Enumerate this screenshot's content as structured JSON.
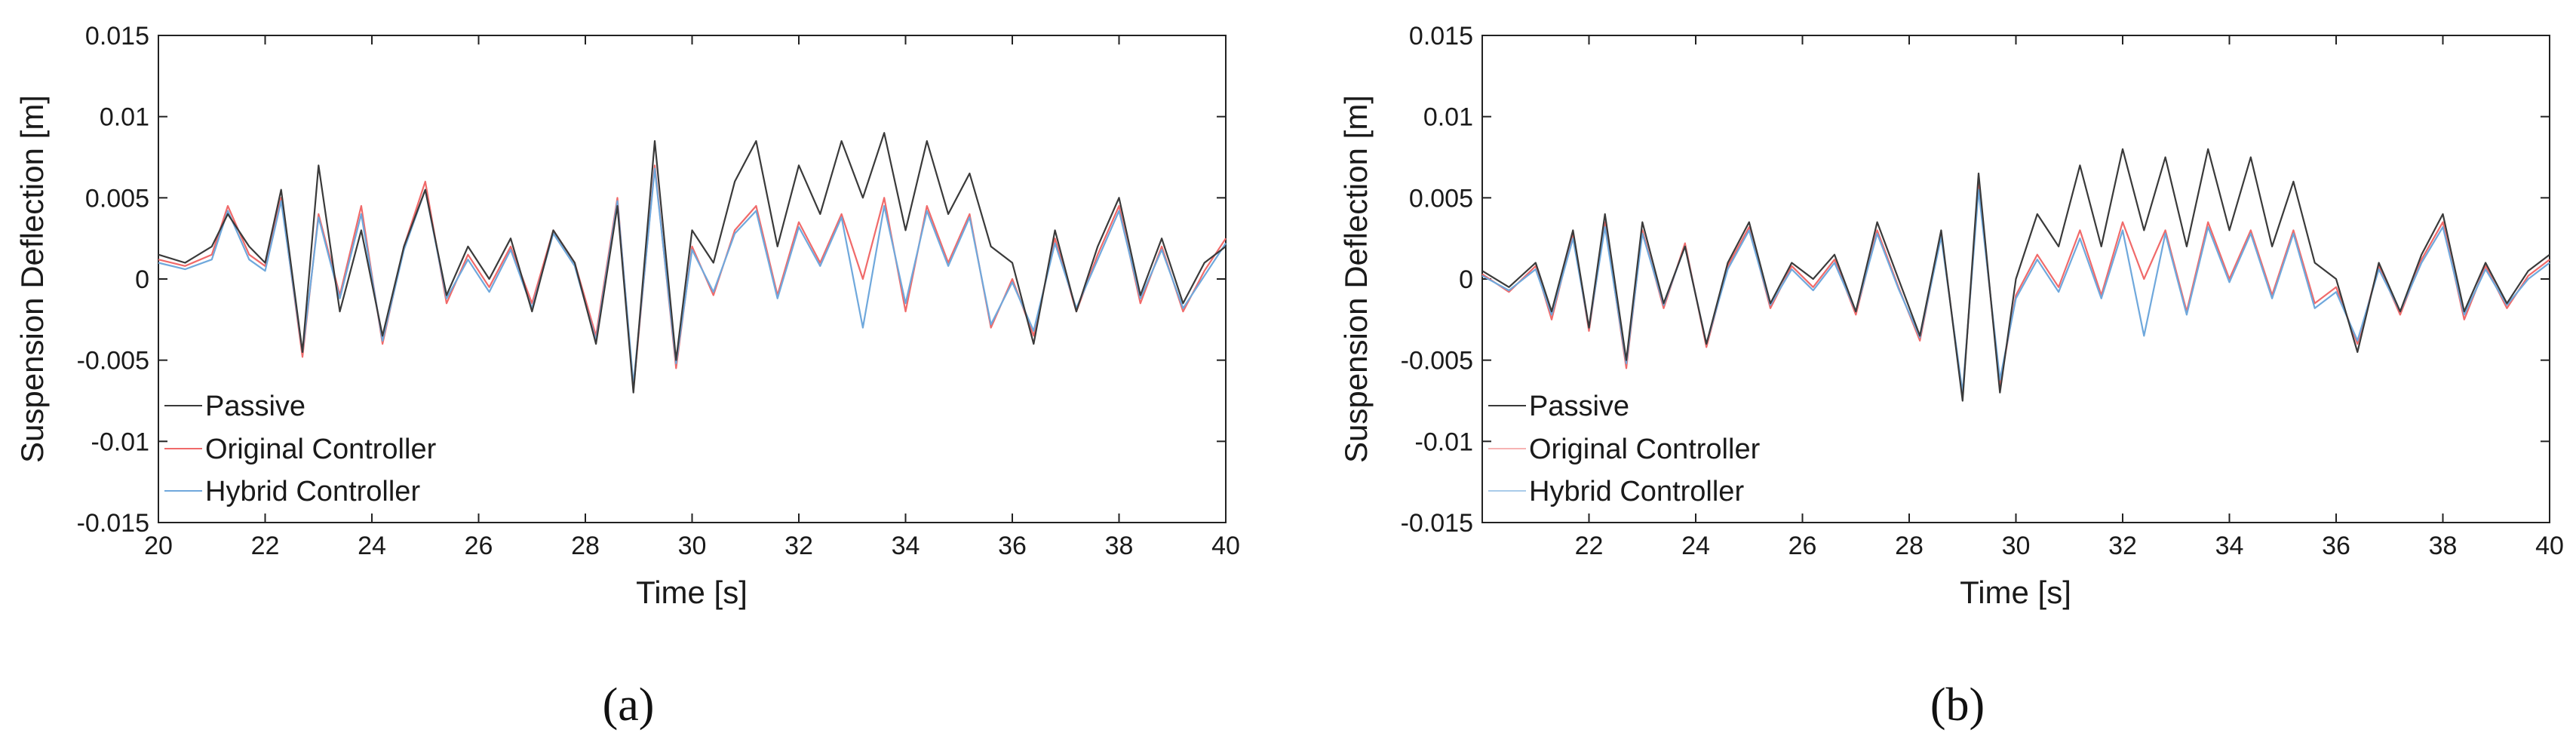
{
  "chart_data": [
    {
      "type": "line",
      "panel_label": "(a)",
      "xlabel": "Time [s]",
      "ylabel": "Suspension Deflection [m]",
      "xlim": [
        20,
        40
      ],
      "ylim": [
        -0.015,
        0.015
      ],
      "xticks": [
        "20",
        "22",
        "24",
        "26",
        "28",
        "30",
        "32",
        "34",
        "36",
        "38",
        "40"
      ],
      "yticks": [
        "-0.015",
        "-0.01",
        "-0.005",
        "0",
        "0.005",
        "0.01",
        "0.015"
      ],
      "legend_position": "bottom-left",
      "series": [
        {
          "name": "Passive",
          "color": "#3a3a3a",
          "x": [
            20.0,
            20.5,
            21.0,
            21.3,
            21.7,
            22.0,
            22.3,
            22.7,
            23.0,
            23.4,
            23.8,
            24.2,
            24.6,
            25.0,
            25.4,
            25.8,
            26.2,
            26.6,
            27.0,
            27.4,
            27.8,
            28.2,
            28.6,
            28.9,
            29.3,
            29.7,
            30.0,
            30.4,
            30.8,
            31.2,
            31.6,
            32.0,
            32.4,
            32.8,
            33.2,
            33.6,
            34.0,
            34.4,
            34.8,
            35.2,
            35.6,
            36.0,
            36.4,
            36.8,
            37.2,
            37.6,
            38.0,
            38.4,
            38.8,
            39.2,
            39.6,
            40.0
          ],
          "values": [
            0.0015,
            0.001,
            0.002,
            0.004,
            0.002,
            0.001,
            0.0055,
            -0.0045,
            0.007,
            -0.002,
            0.003,
            -0.0035,
            0.002,
            0.0055,
            -0.001,
            0.002,
            0.0,
            0.0025,
            -0.002,
            0.003,
            0.001,
            -0.004,
            0.0045,
            -0.007,
            0.0085,
            -0.005,
            0.003,
            0.001,
            0.006,
            0.0085,
            0.002,
            0.007,
            0.004,
            0.0085,
            0.005,
            0.009,
            0.003,
            0.0085,
            0.004,
            0.0065,
            0.002,
            0.001,
            -0.004,
            0.003,
            -0.002,
            0.002,
            0.005,
            -0.001,
            0.0025,
            -0.0015,
            0.001,
            0.002
          ]
        },
        {
          "name": "Original Controller",
          "color": "#f06a6a",
          "x": [
            20.0,
            20.5,
            21.0,
            21.3,
            21.7,
            22.0,
            22.3,
            22.7,
            23.0,
            23.4,
            23.8,
            24.2,
            24.6,
            25.0,
            25.4,
            25.8,
            26.2,
            26.6,
            27.0,
            27.4,
            27.8,
            28.2,
            28.6,
            28.9,
            29.3,
            29.7,
            30.0,
            30.4,
            30.8,
            31.2,
            31.6,
            32.0,
            32.4,
            32.8,
            33.2,
            33.6,
            34.0,
            34.4,
            34.8,
            35.2,
            35.6,
            36.0,
            36.4,
            36.8,
            37.2,
            37.6,
            38.0,
            38.4,
            38.8,
            39.2,
            39.6,
            40.0
          ],
          "values": [
            0.0012,
            0.0008,
            0.0015,
            0.0045,
            0.0015,
            0.0008,
            0.005,
            -0.0048,
            0.004,
            -0.001,
            0.0045,
            -0.004,
            0.002,
            0.006,
            -0.0015,
            0.0015,
            -0.0005,
            0.002,
            -0.0015,
            0.003,
            0.001,
            -0.0035,
            0.005,
            -0.0068,
            0.007,
            -0.0055,
            0.002,
            -0.001,
            0.003,
            0.0045,
            -0.001,
            0.0035,
            0.001,
            0.004,
            0.0,
            0.005,
            -0.002,
            0.0045,
            0.001,
            0.004,
            -0.003,
            0.0,
            -0.0035,
            0.0025,
            -0.002,
            0.0015,
            0.0045,
            -0.0015,
            0.002,
            -0.002,
            0.0005,
            0.0025
          ]
        },
        {
          "name": "Hybrid Controller",
          "color": "#6fa8dc",
          "x": [
            20.0,
            20.5,
            21.0,
            21.3,
            21.7,
            22.0,
            22.3,
            22.7,
            23.0,
            23.4,
            23.8,
            24.2,
            24.6,
            25.0,
            25.4,
            25.8,
            26.2,
            26.6,
            27.0,
            27.4,
            27.8,
            28.2,
            28.6,
            28.9,
            29.3,
            29.7,
            30.0,
            30.4,
            30.8,
            31.2,
            31.6,
            32.0,
            32.4,
            32.8,
            33.2,
            33.6,
            34.0,
            34.4,
            34.8,
            35.2,
            35.6,
            36.0,
            36.4,
            36.8,
            37.2,
            37.6,
            38.0,
            38.4,
            38.8,
            39.2,
            39.6,
            40.0
          ],
          "values": [
            0.001,
            0.0006,
            0.0012,
            0.0042,
            0.0012,
            0.0005,
            0.0048,
            -0.0045,
            0.0038,
            -0.0012,
            0.004,
            -0.0038,
            0.0018,
            0.0055,
            -0.0012,
            0.0012,
            -0.0008,
            0.0018,
            -0.0018,
            0.0028,
            0.0008,
            -0.0038,
            0.0048,
            -0.0065,
            0.0068,
            -0.0052,
            0.0018,
            -0.0008,
            0.0028,
            0.0042,
            -0.0012,
            0.0032,
            0.0008,
            0.0038,
            -0.003,
            0.0045,
            -0.0015,
            0.0042,
            0.0008,
            0.0038,
            -0.0028,
            -0.0002,
            -0.0032,
            0.0022,
            -0.0018,
            0.0012,
            0.0042,
            -0.0012,
            0.0018,
            -0.0018,
            0.0002,
            0.0022
          ]
        }
      ]
    },
    {
      "type": "line",
      "panel_label": "(b)",
      "xlabel": "Time [s]",
      "ylabel": "Suspension Deflection [m]",
      "xlim": [
        20,
        40
      ],
      "ylim": [
        -0.015,
        0.015
      ],
      "xticks": [
        "22",
        "24",
        "26",
        "28",
        "30",
        "32",
        "34",
        "36",
        "38",
        "40"
      ],
      "yticks": [
        "-0.015",
        "-0.01",
        "-0.005",
        "0",
        "0.005",
        "0.01",
        "0.015"
      ],
      "legend_position": "bottom-left",
      "series": [
        {
          "name": "Passive",
          "color": "#3a3a3a",
          "x": [
            20.0,
            20.5,
            21.0,
            21.3,
            21.7,
            22.0,
            22.3,
            22.7,
            23.0,
            23.4,
            23.8,
            24.2,
            24.6,
            25.0,
            25.4,
            25.8,
            26.2,
            26.6,
            27.0,
            27.4,
            27.8,
            28.2,
            28.6,
            29.0,
            29.3,
            29.7,
            30.0,
            30.4,
            30.8,
            31.2,
            31.6,
            32.0,
            32.4,
            32.8,
            33.2,
            33.6,
            34.0,
            34.4,
            34.8,
            35.2,
            35.6,
            36.0,
            36.4,
            36.8,
            37.2,
            37.6,
            38.0,
            38.4,
            38.8,
            39.2,
            39.6,
            40.0
          ],
          "values": [
            0.0005,
            -0.0005,
            0.001,
            -0.002,
            0.003,
            -0.003,
            0.004,
            -0.005,
            0.0035,
            -0.0015,
            0.002,
            -0.004,
            0.001,
            0.0035,
            -0.0015,
            0.001,
            0.0,
            0.0015,
            -0.002,
            0.0035,
            0.0,
            -0.0035,
            0.003,
            -0.0075,
            0.0065,
            -0.007,
            0.0,
            0.004,
            0.002,
            0.007,
            0.002,
            0.008,
            0.003,
            0.0075,
            0.002,
            0.008,
            0.003,
            0.0075,
            0.002,
            0.006,
            0.001,
            0.0,
            -0.0045,
            0.001,
            -0.002,
            0.0015,
            0.004,
            -0.002,
            0.001,
            -0.0015,
            0.0005,
            0.0015
          ]
        },
        {
          "name": "Original Controller",
          "color": "#f06a6a",
          "x": [
            20.0,
            20.5,
            21.0,
            21.3,
            21.7,
            22.0,
            22.3,
            22.7,
            23.0,
            23.4,
            23.8,
            24.2,
            24.6,
            25.0,
            25.4,
            25.8,
            26.2,
            26.6,
            27.0,
            27.4,
            27.8,
            28.2,
            28.6,
            29.0,
            29.3,
            29.7,
            30.0,
            30.4,
            30.8,
            31.2,
            31.6,
            32.0,
            32.4,
            32.8,
            33.2,
            33.6,
            34.0,
            34.4,
            34.8,
            35.2,
            35.6,
            36.0,
            36.4,
            36.8,
            37.2,
            37.6,
            38.0,
            38.4,
            38.8,
            39.2,
            39.6,
            40.0
          ],
          "values": [
            0.0003,
            -0.0008,
            0.0008,
            -0.0025,
            0.0028,
            -0.0032,
            0.0035,
            -0.0055,
            0.003,
            -0.0018,
            0.0022,
            -0.0042,
            0.0008,
            0.0032,
            -0.0018,
            0.0008,
            -0.0005,
            0.0012,
            -0.0022,
            0.003,
            -0.0005,
            -0.0038,
            0.0028,
            -0.0072,
            0.0058,
            -0.0065,
            -0.001,
            0.0015,
            -0.0005,
            0.003,
            -0.001,
            0.0035,
            0.0,
            0.003,
            -0.002,
            0.0035,
            0.0,
            0.003,
            -0.001,
            0.003,
            -0.0015,
            -0.0005,
            -0.004,
            0.0008,
            -0.0022,
            0.0012,
            0.0035,
            -0.0025,
            0.0008,
            -0.0018,
            0.0002,
            0.0012
          ]
        },
        {
          "name": "Hybrid Controller",
          "color": "#6fa8dc",
          "x": [
            20.0,
            20.5,
            21.0,
            21.3,
            21.7,
            22.0,
            22.3,
            22.7,
            23.0,
            23.4,
            23.8,
            24.2,
            24.6,
            25.0,
            25.4,
            25.8,
            26.2,
            26.6,
            27.0,
            27.4,
            27.8,
            28.2,
            28.6,
            29.0,
            29.3,
            29.7,
            30.0,
            30.4,
            30.8,
            31.2,
            31.6,
            32.0,
            32.4,
            32.8,
            33.2,
            33.6,
            34.0,
            34.4,
            34.8,
            35.2,
            35.6,
            36.0,
            36.4,
            36.8,
            37.2,
            37.6,
            38.0,
            38.4,
            38.8,
            39.2,
            39.6,
            40.0
          ],
          "values": [
            0.0002,
            -0.0007,
            0.0006,
            -0.0022,
            0.0025,
            -0.003,
            0.0032,
            -0.0052,
            0.0028,
            -0.0016,
            0.002,
            -0.004,
            0.0006,
            0.003,
            -0.0016,
            0.0006,
            -0.0007,
            0.001,
            -0.002,
            0.0028,
            -0.0006,
            -0.0036,
            0.0026,
            -0.007,
            0.0055,
            -0.0062,
            -0.0012,
            0.0012,
            -0.0008,
            0.0025,
            -0.0012,
            0.003,
            -0.0035,
            0.0028,
            -0.0022,
            0.0032,
            -0.0002,
            0.0028,
            -0.0012,
            0.0028,
            -0.0018,
            -0.0008,
            -0.0038,
            0.0006,
            -0.002,
            0.001,
            0.0032,
            -0.0022,
            0.0006,
            -0.0016,
            0.0,
            0.001
          ]
        }
      ]
    }
  ]
}
